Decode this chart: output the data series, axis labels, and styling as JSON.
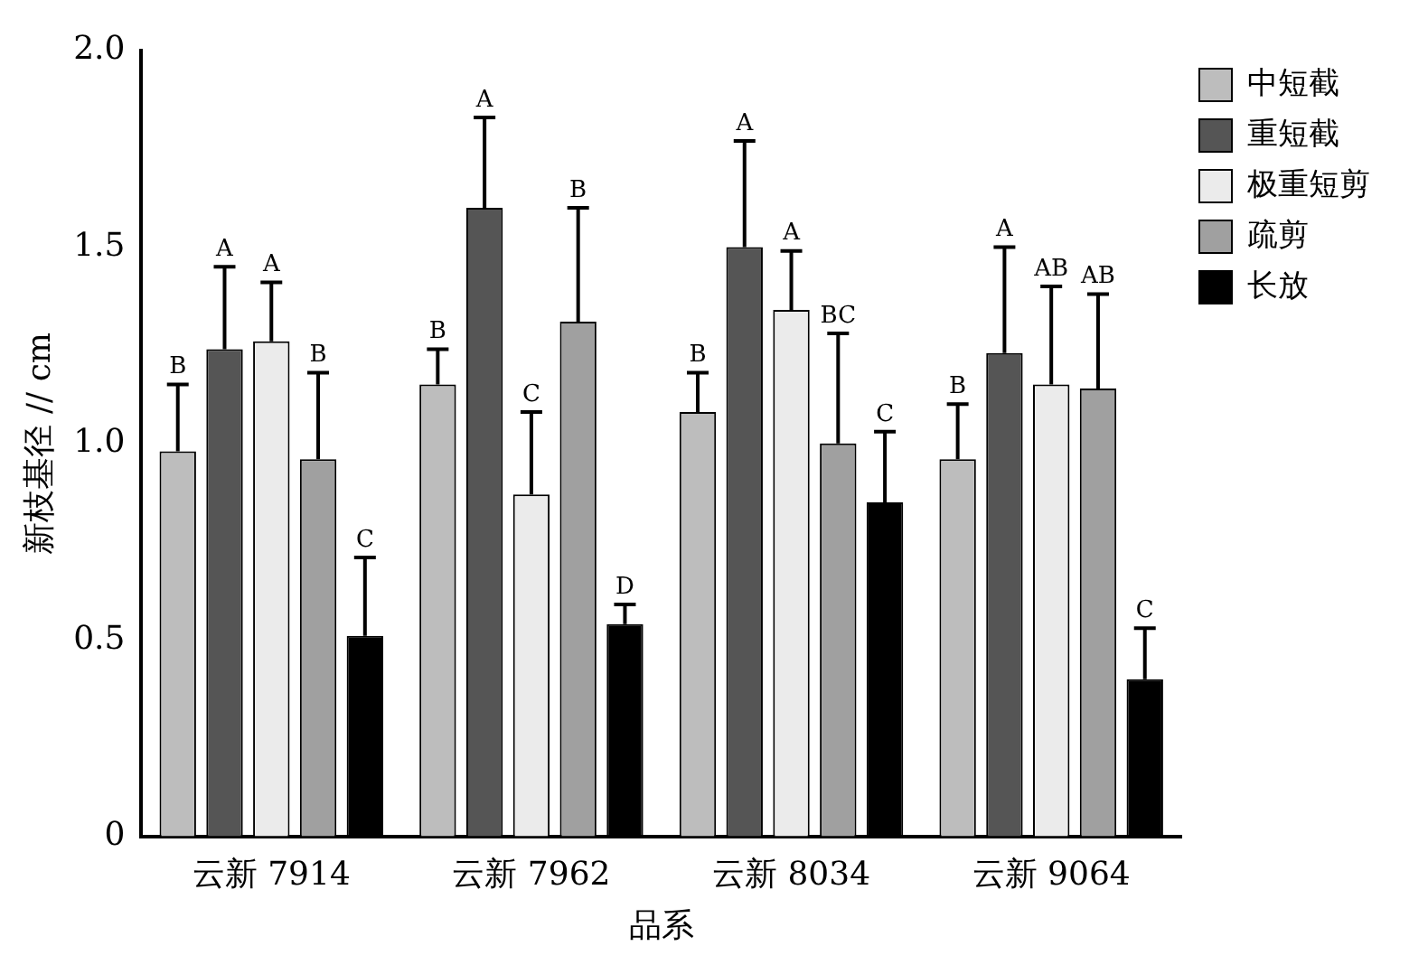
{
  "chart_data": {
    "type": "bar",
    "xlabel": "品系",
    "ylabel": "新枝基径 // cm",
    "categories": [
      "云新 7914",
      "云新 7962",
      "云新 8034",
      "云新 9064"
    ],
    "ylim": [
      0,
      2.0
    ],
    "yticks": [
      0,
      {
        "value": 0.5,
        "label": "0.5"
      },
      {
        "value": 1,
        "label": "1.0"
      },
      {
        "value": 1.5,
        "label": "1.5"
      },
      {
        "value": 2,
        "label": "2.0"
      }
    ],
    "grid": false,
    "legend": "right",
    "series": [
      {
        "name": "中短截",
        "color": "#bdbdbd",
        "values": [
          0.98,
          1.15,
          1.08,
          0.96
        ],
        "errors": [
          [
            0.98,
            1.15
          ],
          [
            1.15,
            1.24
          ],
          [
            1.08,
            1.18
          ],
          [
            0.96,
            1.1
          ]
        ]
      },
      {
        "name": "重短截",
        "color": "#555555",
        "values": [
          1.24,
          1.6,
          1.5,
          1.23
        ],
        "errors": [
          [
            1.24,
            1.45
          ],
          [
            1.6,
            1.83
          ],
          [
            1.5,
            1.77
          ],
          [
            1.23,
            1.5
          ]
        ]
      },
      {
        "name": "极重短剪",
        "color": "#ebebeb",
        "values": [
          1.26,
          0.87,
          1.34,
          1.15
        ],
        "errors": [
          [
            1.26,
            1.41
          ],
          [
            0.87,
            1.08
          ],
          [
            1.34,
            1.49
          ],
          [
            1.15,
            1.4
          ]
        ]
      },
      {
        "name": "疏剪",
        "color": "#a0a0a0",
        "values": [
          0.96,
          1.31,
          1.0,
          1.14
        ],
        "errors": [
          [
            0.96,
            1.18
          ],
          [
            1.31,
            1.6
          ],
          [
            1.0,
            1.28
          ],
          [
            1.14,
            1.38
          ]
        ]
      },
      {
        "name": "长放",
        "color": "#000000",
        "values": [
          0.51,
          0.54,
          0.85,
          0.4
        ],
        "errors": [
          [
            0.51,
            0.71
          ],
          [
            0.54,
            0.59
          ],
          [
            0.85,
            1.03
          ],
          [
            0.4,
            0.53
          ]
        ]
      }
    ],
    "annotations": [
      "B",
      "A",
      "A",
      "B",
      "C",
      "B",
      "A",
      "C",
      "B",
      "D",
      "B",
      "A",
      "A",
      "BC",
      "C",
      "B",
      "A",
      "AB",
      "AB",
      "C"
    ]
  }
}
